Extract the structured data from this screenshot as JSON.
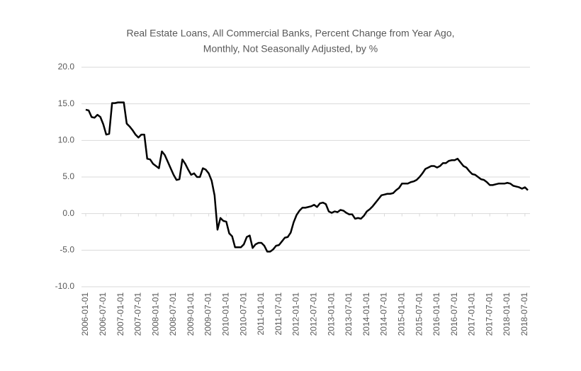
{
  "chart_data": {
    "type": "line",
    "title": [
      "Real Estate Loans, All Commercial Banks, Percent Change from Year Ago,",
      "Monthly, Not Seasonally Adjusted, by %"
    ],
    "x": [
      "2006-01-01",
      "2006-02-01",
      "2006-03-01",
      "2006-04-01",
      "2006-05-01",
      "2006-06-01",
      "2006-07-01",
      "2006-08-01",
      "2006-09-01",
      "2006-10-01",
      "2006-11-01",
      "2006-12-01",
      "2007-01-01",
      "2007-02-01",
      "2007-03-01",
      "2007-04-01",
      "2007-05-01",
      "2007-06-01",
      "2007-07-01",
      "2007-08-01",
      "2007-09-01",
      "2007-10-01",
      "2007-11-01",
      "2007-12-01",
      "2008-01-01",
      "2008-02-01",
      "2008-03-01",
      "2008-04-01",
      "2008-05-01",
      "2008-06-01",
      "2008-07-01",
      "2008-08-01",
      "2008-09-01",
      "2008-10-01",
      "2008-11-01",
      "2008-12-01",
      "2009-01-01",
      "2009-02-01",
      "2009-03-01",
      "2009-04-01",
      "2009-05-01",
      "2009-06-01",
      "2009-07-01",
      "2009-08-01",
      "2009-09-01",
      "2009-10-01",
      "2009-11-01",
      "2009-12-01",
      "2010-01-01",
      "2010-02-01",
      "2010-03-01",
      "2010-04-01",
      "2010-05-01",
      "2010-06-01",
      "2010-07-01",
      "2010-08-01",
      "2010-09-01",
      "2010-10-01",
      "2010-11-01",
      "2010-12-01",
      "2011-01-01",
      "2011-02-01",
      "2011-03-01",
      "2011-04-01",
      "2011-05-01",
      "2011-06-01",
      "2011-07-01",
      "2011-08-01",
      "2011-09-01",
      "2011-10-01",
      "2011-11-01",
      "2011-12-01",
      "2012-01-01",
      "2012-02-01",
      "2012-03-01",
      "2012-04-01",
      "2012-05-01",
      "2012-06-01",
      "2012-07-01",
      "2012-08-01",
      "2012-09-01",
      "2012-10-01",
      "2012-11-01",
      "2012-12-01",
      "2013-01-01",
      "2013-02-01",
      "2013-03-01",
      "2013-04-01",
      "2013-05-01",
      "2013-06-01",
      "2013-07-01",
      "2013-08-01",
      "2013-09-01",
      "2013-10-01",
      "2013-11-01",
      "2013-12-01",
      "2014-01-01",
      "2014-02-01",
      "2014-03-01",
      "2014-04-01",
      "2014-05-01",
      "2014-06-01",
      "2014-07-01",
      "2014-08-01",
      "2014-09-01",
      "2014-10-01",
      "2014-11-01",
      "2014-12-01",
      "2015-01-01",
      "2015-02-01",
      "2015-03-01",
      "2015-04-01",
      "2015-05-01",
      "2015-06-01",
      "2015-07-01",
      "2015-08-01",
      "2015-09-01",
      "2015-10-01",
      "2015-11-01",
      "2015-12-01",
      "2016-01-01",
      "2016-02-01",
      "2016-03-01",
      "2016-04-01",
      "2016-05-01",
      "2016-06-01",
      "2016-07-01",
      "2016-08-01",
      "2016-09-01",
      "2016-10-01",
      "2016-11-01",
      "2016-12-01",
      "2017-01-01",
      "2017-02-01",
      "2017-03-01",
      "2017-04-01",
      "2017-05-01",
      "2017-06-01",
      "2017-07-01",
      "2017-08-01",
      "2017-09-01",
      "2017-10-01",
      "2017-11-01",
      "2017-12-01",
      "2018-01-01",
      "2018-02-01",
      "2018-03-01",
      "2018-04-01",
      "2018-05-01",
      "2018-06-01",
      "2018-07-01",
      "2018-08-01"
    ],
    "values": [
      14.2,
      14.1,
      13.2,
      13.1,
      13.5,
      13.2,
      12.2,
      10.8,
      10.9,
      15.1,
      15.1,
      15.2,
      15.2,
      15.2,
      12.3,
      11.9,
      11.4,
      10.8,
      10.4,
      10.8,
      10.8,
      7.5,
      7.4,
      6.8,
      6.5,
      6.2,
      8.5,
      8.0,
      7.1,
      6.2,
      5.3,
      4.6,
      4.7,
      7.4,
      6.8,
      6.0,
      5.3,
      5.5,
      5.0,
      5.0,
      6.2,
      6.0,
      5.5,
      4.5,
      2.5,
      -2.2,
      -0.6,
      -1.0,
      -1.1,
      -2.7,
      -3.1,
      -4.6,
      -4.6,
      -4.6,
      -4.2,
      -3.2,
      -3.0,
      -4.7,
      -4.2,
      -4.0,
      -4.0,
      -4.4,
      -5.2,
      -5.2,
      -4.9,
      -4.4,
      -4.3,
      -3.8,
      -3.3,
      -3.2,
      -2.6,
      -1.2,
      -0.2,
      0.4,
      0.8,
      0.8,
      0.9,
      1.0,
      1.2,
      0.9,
      1.4,
      1.5,
      1.3,
      0.3,
      0.1,
      0.3,
      0.2,
      0.5,
      0.4,
      0.1,
      -0.1,
      -0.1,
      -0.7,
      -0.6,
      -0.7,
      -0.3,
      0.3,
      0.6,
      1.0,
      1.5,
      2.0,
      2.5,
      2.6,
      2.7,
      2.7,
      2.8,
      3.2,
      3.5,
      4.1,
      4.1,
      4.1,
      4.3,
      4.4,
      4.6,
      5.0,
      5.5,
      6.1,
      6.3,
      6.5,
      6.5,
      6.3,
      6.5,
      6.9,
      6.9,
      7.2,
      7.3,
      7.3,
      7.5,
      7.0,
      6.5,
      6.3,
      5.8,
      5.4,
      5.3,
      5.0,
      4.7,
      4.6,
      4.3,
      3.9,
      3.9,
      4.0,
      4.1,
      4.1,
      4.1,
      4.2,
      4.1,
      3.8,
      3.7,
      3.6,
      3.4,
      3.6,
      3.2
    ],
    "color": "#000000",
    "xticks": [
      "2006-01-01",
      "2006-07-01",
      "2007-01-01",
      "2007-07-01",
      "2008-01-01",
      "2008-07-01",
      "2009-01-01",
      "2009-07-01",
      "2010-01-01",
      "2010-07-01",
      "2011-01-01",
      "2011-07-01",
      "2012-01-01",
      "2012-07-01",
      "2013-01-01",
      "2013-07-01",
      "2014-01-01",
      "2014-07-01",
      "2015-01-01",
      "2015-07-01",
      "2016-01-01",
      "2016-07-01",
      "2017-01-01",
      "2017-07-01",
      "2018-01-01",
      "2018-07-01"
    ],
    "ylim": [
      -10,
      20
    ],
    "yticks": [
      {
        "value": -10,
        "label": "-10.0"
      },
      {
        "value": -5,
        "label": "-5.0"
      },
      {
        "value": 0,
        "label": "0.0"
      },
      {
        "value": 5,
        "label": "5.0"
      },
      {
        "value": 10,
        "label": "10.0"
      },
      {
        "value": 15,
        "label": "15.0"
      },
      {
        "value": 20,
        "label": "20.0"
      }
    ],
    "grid": true
  }
}
